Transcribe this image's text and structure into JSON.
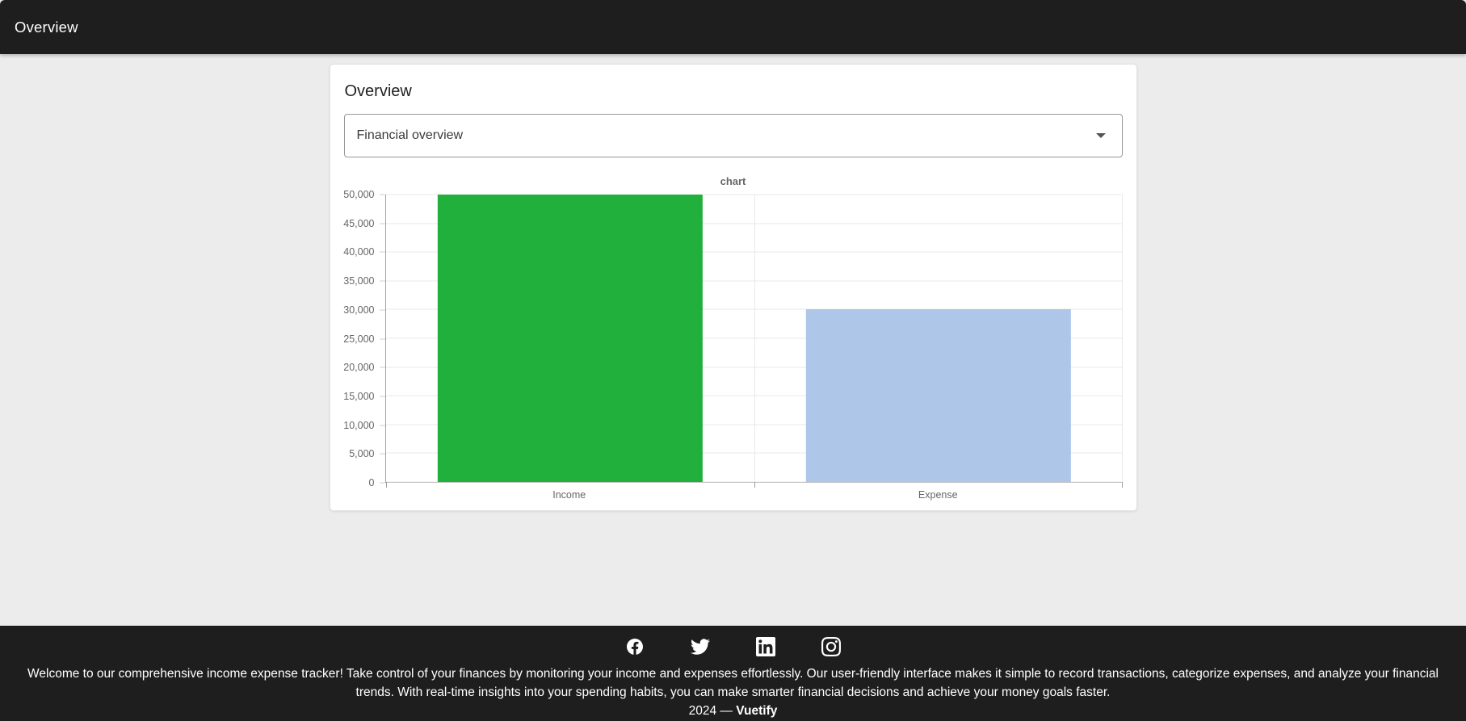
{
  "app_bar": {
    "title": "Overview"
  },
  "card": {
    "title": "Overview",
    "select": {
      "value": "Financial overview"
    }
  },
  "chart_data": {
    "type": "bar",
    "title": "chart",
    "categories": [
      "Income",
      "Expense"
    ],
    "values": [
      50000,
      30000
    ],
    "bar_colors": [
      "#22b03c",
      "#aec6e8"
    ],
    "ylim": [
      0,
      50000
    ],
    "ytick_step": 5000,
    "ytick_labels": [
      "0",
      "5,000",
      "10,000",
      "15,000",
      "20,000",
      "25,000",
      "30,000",
      "35,000",
      "40,000",
      "45,000",
      "50,000"
    ],
    "grid": true,
    "legend_position": "none",
    "xlabel": "",
    "ylabel": ""
  },
  "footer": {
    "social_icons": [
      "facebook-icon",
      "twitter-icon",
      "linkedin-icon",
      "instagram-icon"
    ],
    "description": "Welcome to our comprehensive income expense tracker! Take control of your finances by monitoring your income and expenses effortlessly. Our user-friendly interface makes it simple to record transactions, categorize expenses, and analyze your financial trends. With real-time insights into your spending habits, you can make smarter financial decisions and achieve your money goals faster.",
    "copyright_prefix": "2024 —",
    "copyright_brand": "Vuetify"
  },
  "colors": {
    "app_bar_bg": "#1e1e1e",
    "page_bg": "#ececec",
    "footer_bg": "#1e1e1e",
    "income_bar": "#22b03c",
    "expense_bar": "#aec6e8"
  }
}
